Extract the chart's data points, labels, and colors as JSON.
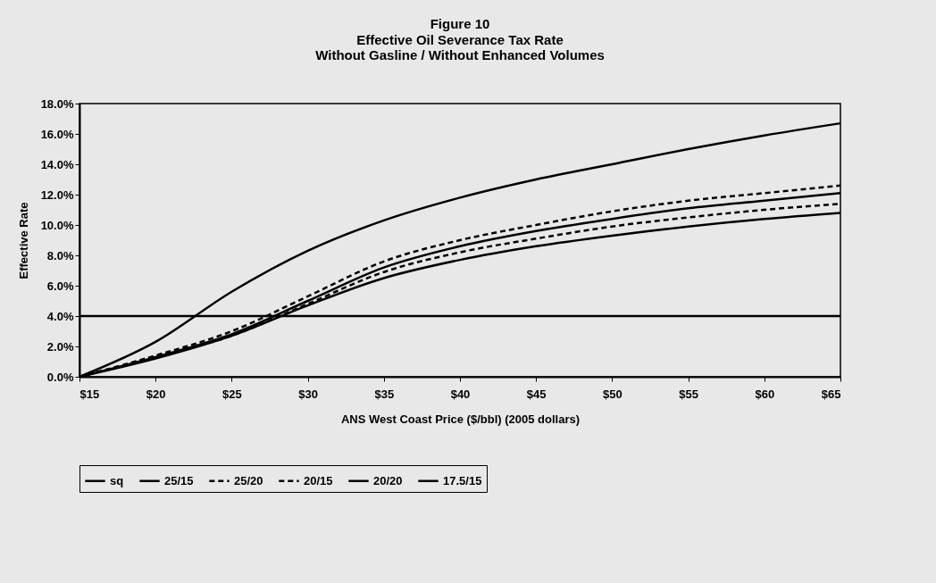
{
  "chart_data": {
    "type": "line",
    "title": "Figure 10",
    "subtitle": "Effective Oil Severance Tax Rate\nWithout Gasline / Without Enhanced Volumes",
    "xlabel": "ANS West Coast Price ($/bbl) (2005 dollars)",
    "ylabel": "Effective Rate",
    "x": [
      15,
      20,
      25,
      30,
      35,
      40,
      45,
      50,
      55,
      60,
      65
    ],
    "series": [
      {
        "name": "sq",
        "color": "#000000",
        "line_style": "solid",
        "values": [
          4.0,
          4.0,
          4.0,
          4.0,
          4.0,
          4.0,
          4.0,
          4.0,
          4.0,
          4.0,
          4.0
        ]
      },
      {
        "name": "25/15",
        "color": "#000000",
        "line_style": "solid",
        "values": [
          0,
          2.3,
          5.6,
          8.3,
          10.3,
          11.8,
          13.0,
          14.0,
          15.0,
          15.9,
          16.7
        ]
      },
      {
        "name": "25/20",
        "color": "#000000",
        "line_style": "dashed",
        "values": [
          0,
          1.4,
          3.0,
          5.3,
          7.6,
          9.0,
          10.0,
          10.9,
          11.6,
          12.1,
          12.6
        ]
      },
      {
        "name": "20/15",
        "color": "#000000",
        "line_style": "dashed",
        "values": [
          0,
          1.3,
          2.7,
          4.8,
          6.9,
          8.2,
          9.1,
          9.9,
          10.5,
          11.0,
          11.4
        ]
      },
      {
        "name": "20/20",
        "color": "#000000",
        "line_style": "solid",
        "values": [
          0,
          1.3,
          2.8,
          5.0,
          7.2,
          8.6,
          9.6,
          10.4,
          11.1,
          11.6,
          12.1
        ]
      },
      {
        "name": "17.5/15",
        "color": "#000000",
        "line_style": "solid",
        "values": [
          0,
          1.2,
          2.7,
          4.7,
          6.5,
          7.7,
          8.6,
          9.3,
          9.9,
          10.4,
          10.8
        ]
      }
    ],
    "xlim": [
      15,
      65
    ],
    "xticks": [
      {
        "value": 15,
        "label": "$15"
      },
      {
        "value": 20,
        "label": "$20"
      },
      {
        "value": 25,
        "label": "$25"
      },
      {
        "value": 30,
        "label": "$30"
      },
      {
        "value": 35,
        "label": "$35"
      },
      {
        "value": 40,
        "label": "$40"
      },
      {
        "value": 45,
        "label": "$45"
      },
      {
        "value": 50,
        "label": "$50"
      },
      {
        "value": 55,
        "label": "$55"
      },
      {
        "value": 60,
        "label": "$60"
      },
      {
        "value": 65,
        "label": "$65"
      }
    ],
    "ylim": [
      0,
      18
    ],
    "yticks": [
      {
        "value": 0,
        "label": "0.0%"
      },
      {
        "value": 2,
        "label": "2.0%"
      },
      {
        "value": 4,
        "label": "4.0%"
      },
      {
        "value": 6,
        "label": "6.0%"
      },
      {
        "value": 8,
        "label": "8.0%"
      },
      {
        "value": 10,
        "label": "10.0%"
      },
      {
        "value": 12,
        "label": "12.0%"
      },
      {
        "value": 14,
        "label": "14.0%"
      },
      {
        "value": 16,
        "label": "16.0%"
      },
      {
        "value": 18,
        "label": "18.0%"
      }
    ],
    "grid": false,
    "legend": "bottom",
    "marker": "none"
  }
}
